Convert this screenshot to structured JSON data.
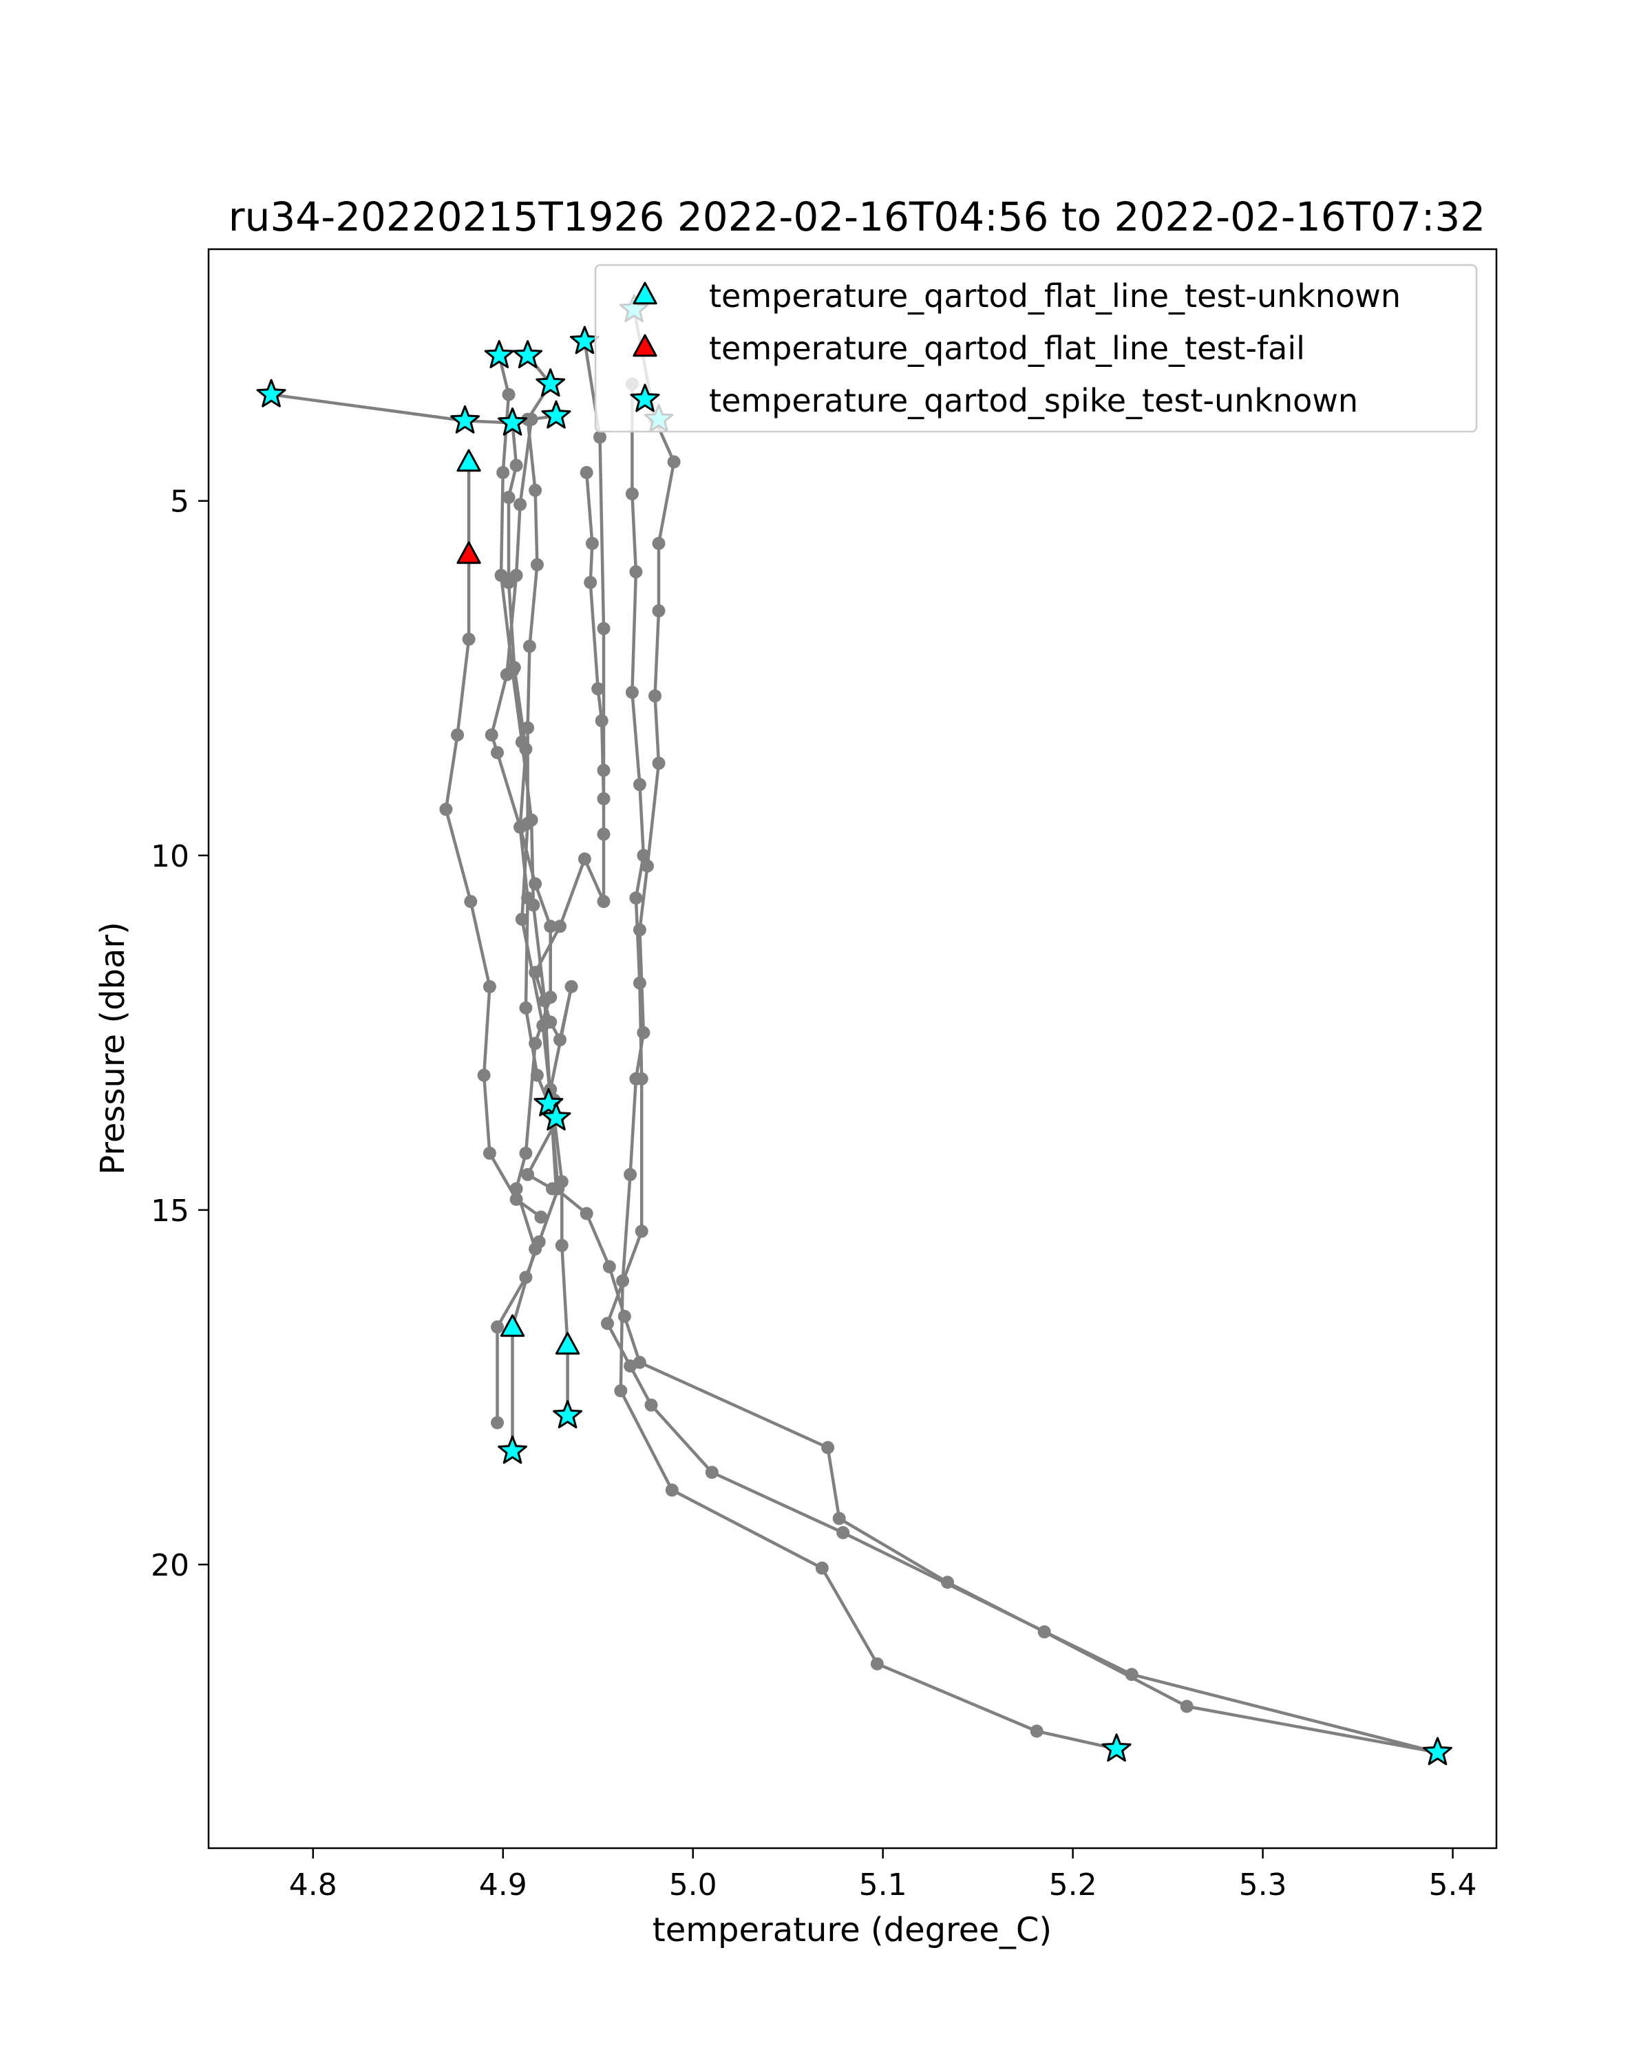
{
  "chart_data": {
    "type": "line",
    "title": "ru34-20220215T1926 2022-02-16T04:56 to 2022-02-16T07:32",
    "xlabel": "temperature (degree_C)",
    "ylabel": "Pressure (dbar)",
    "xlim": [
      4.745,
      5.423
    ],
    "ylim": [
      24.0,
      1.45
    ],
    "y_inverted": true,
    "x_ticks": [
      "4.8",
      "4.9",
      "5.0",
      "5.1",
      "5.2",
      "5.3",
      "5.4"
    ],
    "y_ticks": [
      "5",
      "10",
      "15",
      "20"
    ],
    "grid": false,
    "legend_position": "top-right",
    "colors": {
      "profile_line": "#808080",
      "unknown": "#00ffff",
      "fail": "#ff0000",
      "edge": "#000000"
    },
    "profiles": [
      [
        [
          4.778,
          3.5
        ],
        [
          4.88,
          3.87
        ],
        [
          4.905,
          3.9
        ],
        [
          4.907,
          4.5
        ],
        [
          4.903,
          4.95
        ],
        [
          4.903,
          6.15
        ],
        [
          4.906,
          7.35
        ],
        [
          4.912,
          8.5
        ],
        [
          4.909,
          9.6
        ],
        [
          4.913,
          10.6
        ],
        [
          4.912,
          12.15
        ],
        [
          4.918,
          13.1
        ],
        [
          4.927,
          13.7
        ],
        [
          4.931,
          14.6
        ],
        [
          4.931,
          15.5
        ],
        [
          4.934,
          16.9
        ],
        [
          4.934,
          17.9
        ]
      ],
      [
        [
          4.898,
          2.95
        ],
        [
          4.903,
          3.5
        ],
        [
          4.9,
          4.6
        ],
        [
          4.899,
          6.05
        ],
        [
          4.905,
          7.4
        ],
        [
          4.91,
          8.4
        ],
        [
          4.915,
          9.5
        ],
        [
          4.916,
          10.7
        ],
        [
          4.922,
          12.05
        ],
        [
          4.925,
          13.5
        ],
        [
          4.929,
          14.7
        ],
        [
          4.919,
          15.45
        ],
        [
          4.912,
          15.95
        ],
        [
          4.897,
          16.65
        ],
        [
          4.897,
          18.0
        ]
      ],
      [
        [
          4.913,
          2.95
        ],
        [
          4.925,
          3.35
        ],
        [
          4.913,
          3.85
        ],
        [
          4.917,
          4.85
        ],
        [
          4.918,
          5.9
        ],
        [
          4.914,
          7.05
        ],
        [
          4.913,
          8.2
        ],
        [
          4.913,
          9.55
        ],
        [
          4.91,
          10.9
        ],
        [
          4.921,
          12.4
        ],
        [
          4.925,
          13.4
        ],
        [
          4.928,
          14.7
        ],
        [
          4.944,
          15.05
        ],
        [
          4.956,
          15.8
        ],
        [
          4.964,
          16.5
        ],
        [
          4.972,
          17.15
        ],
        [
          5.071,
          18.35
        ],
        [
          5.077,
          19.35
        ],
        [
          5.134,
          20.25
        ],
        [
          5.185,
          20.95
        ],
        [
          5.26,
          22.0
        ],
        [
          5.392,
          22.65
        ]
      ],
      [
        [
          4.928,
          3.8
        ],
        [
          4.915,
          3.85
        ],
        [
          4.909,
          5.05
        ],
        [
          4.907,
          6.05
        ],
        [
          4.902,
          7.45
        ],
        [
          4.894,
          8.3
        ],
        [
          4.897,
          8.55
        ],
        [
          4.909,
          9.6
        ],
        [
          4.917,
          10.4
        ],
        [
          4.925,
          11.0
        ],
        [
          4.925,
          12.0
        ],
        [
          4.917,
          12.65
        ],
        [
          4.912,
          14.2
        ],
        [
          4.907,
          14.7
        ],
        [
          4.917,
          15.55
        ],
        [
          4.905,
          16.65
        ],
        [
          4.905,
          18.4
        ]
      ],
      [
        [
          4.943,
          2.75
        ],
        [
          4.951,
          4.1
        ],
        [
          4.953,
          6.8
        ],
        [
          4.953,
          8.8
        ],
        [
          4.953,
          9.7
        ],
        [
          4.953,
          10.65
        ],
        [
          4.943,
          10.05
        ],
        [
          4.93,
          11.0
        ],
        [
          4.917,
          11.65
        ],
        [
          4.925,
          12.35
        ],
        [
          4.93,
          12.6
        ],
        [
          4.936,
          11.85
        ],
        [
          4.925,
          13.3
        ],
        [
          4.927,
          13.45
        ],
        [
          4.924,
          13.5
        ],
        [
          4.929,
          13.7
        ],
        [
          4.913,
          14.5
        ],
        [
          4.926,
          14.7
        ]
      ],
      [
        [
          4.882,
          4.45
        ],
        [
          4.882,
          5.75
        ],
        [
          4.882,
          6.95
        ],
        [
          4.876,
          8.3
        ],
        [
          4.87,
          9.35
        ],
        [
          4.883,
          10.65
        ],
        [
          4.893,
          11.85
        ],
        [
          4.89,
          13.1
        ],
        [
          4.893,
          14.2
        ],
        [
          4.907,
          14.85
        ],
        [
          4.92,
          15.1
        ]
      ],
      [
        [
          4.968,
          3.35
        ],
        [
          4.968,
          4.9
        ],
        [
          4.97,
          6.0
        ],
        [
          4.968,
          7.7
        ],
        [
          4.972,
          9.0
        ],
        [
          4.974,
          10.0
        ],
        [
          4.97,
          10.6
        ],
        [
          4.972,
          11.8
        ],
        [
          4.973,
          13.15
        ],
        [
          4.973,
          15.3
        ],
        [
          4.955,
          16.6
        ],
        [
          4.967,
          17.2
        ],
        [
          4.978,
          17.75
        ],
        [
          5.01,
          18.7
        ],
        [
          5.079,
          19.55
        ],
        [
          5.231,
          21.55
        ],
        [
          5.392,
          22.65
        ]
      ],
      [
        [
          4.969,
          2.3
        ],
        [
          4.98,
          3.85
        ],
        [
          4.99,
          4.45
        ],
        [
          4.982,
          5.6
        ],
        [
          4.982,
          6.55
        ],
        [
          4.98,
          7.75
        ],
        [
          4.982,
          8.7
        ],
        [
          4.976,
          10.15
        ],
        [
          4.972,
          11.05
        ],
        [
          4.974,
          12.5
        ],
        [
          4.97,
          13.15
        ],
        [
          4.967,
          14.5
        ],
        [
          4.963,
          16.0
        ],
        [
          4.962,
          17.55
        ],
        [
          4.989,
          18.95
        ],
        [
          5.068,
          20.05
        ],
        [
          5.097,
          21.4
        ],
        [
          5.181,
          22.35
        ],
        [
          5.223,
          22.6
        ]
      ],
      [
        [
          4.944,
          4.6
        ],
        [
          4.947,
          5.6
        ],
        [
          4.946,
          6.15
        ],
        [
          4.95,
          7.65
        ],
        [
          4.952,
          8.1
        ],
        [
          4.953,
          9.2
        ]
      ]
    ],
    "markers": [
      {
        "test": "flat_line",
        "flag": "unknown",
        "x": 4.882,
        "y": 4.45
      },
      {
        "test": "flat_line",
        "flag": "unknown",
        "x": 4.905,
        "y": 16.65
      },
      {
        "test": "flat_line",
        "flag": "unknown",
        "x": 4.934,
        "y": 16.9
      },
      {
        "test": "flat_line",
        "flag": "fail",
        "x": 4.882,
        "y": 5.75
      },
      {
        "test": "spike",
        "flag": "unknown",
        "x": 4.778,
        "y": 3.5
      },
      {
        "test": "spike",
        "flag": "unknown",
        "x": 4.88,
        "y": 3.87
      },
      {
        "test": "spike",
        "flag": "unknown",
        "x": 4.898,
        "y": 2.95
      },
      {
        "test": "spike",
        "flag": "unknown",
        "x": 4.913,
        "y": 2.95
      },
      {
        "test": "spike",
        "flag": "unknown",
        "x": 4.925,
        "y": 3.35
      },
      {
        "test": "spike",
        "flag": "unknown",
        "x": 4.928,
        "y": 3.8
      },
      {
        "test": "spike",
        "flag": "unknown",
        "x": 4.905,
        "y": 3.9
      },
      {
        "test": "spike",
        "flag": "unknown",
        "x": 4.943,
        "y": 2.75
      },
      {
        "test": "spike",
        "flag": "unknown",
        "x": 4.969,
        "y": 2.3
      },
      {
        "test": "spike",
        "flag": "unknown",
        "x": 4.982,
        "y": 3.85
      },
      {
        "test": "spike",
        "flag": "unknown",
        "x": 4.924,
        "y": 13.5
      },
      {
        "test": "spike",
        "flag": "unknown",
        "x": 4.928,
        "y": 13.7
      },
      {
        "test": "spike",
        "flag": "unknown",
        "x": 4.934,
        "y": 17.9
      },
      {
        "test": "spike",
        "flag": "unknown",
        "x": 4.905,
        "y": 18.4
      },
      {
        "test": "spike",
        "flag": "unknown",
        "x": 5.223,
        "y": 22.6
      },
      {
        "test": "spike",
        "flag": "unknown",
        "x": 5.392,
        "y": 22.65
      }
    ],
    "legend": [
      {
        "label": "temperature_qartod_flat_line_test-unknown",
        "marker": "triangle",
        "color": "#00ffff"
      },
      {
        "label": "temperature_qartod_flat_line_test-fail",
        "marker": "triangle",
        "color": "#ff0000"
      },
      {
        "label": "temperature_qartod_spike_test-unknown",
        "marker": "star",
        "color": "#00ffff"
      }
    ]
  }
}
